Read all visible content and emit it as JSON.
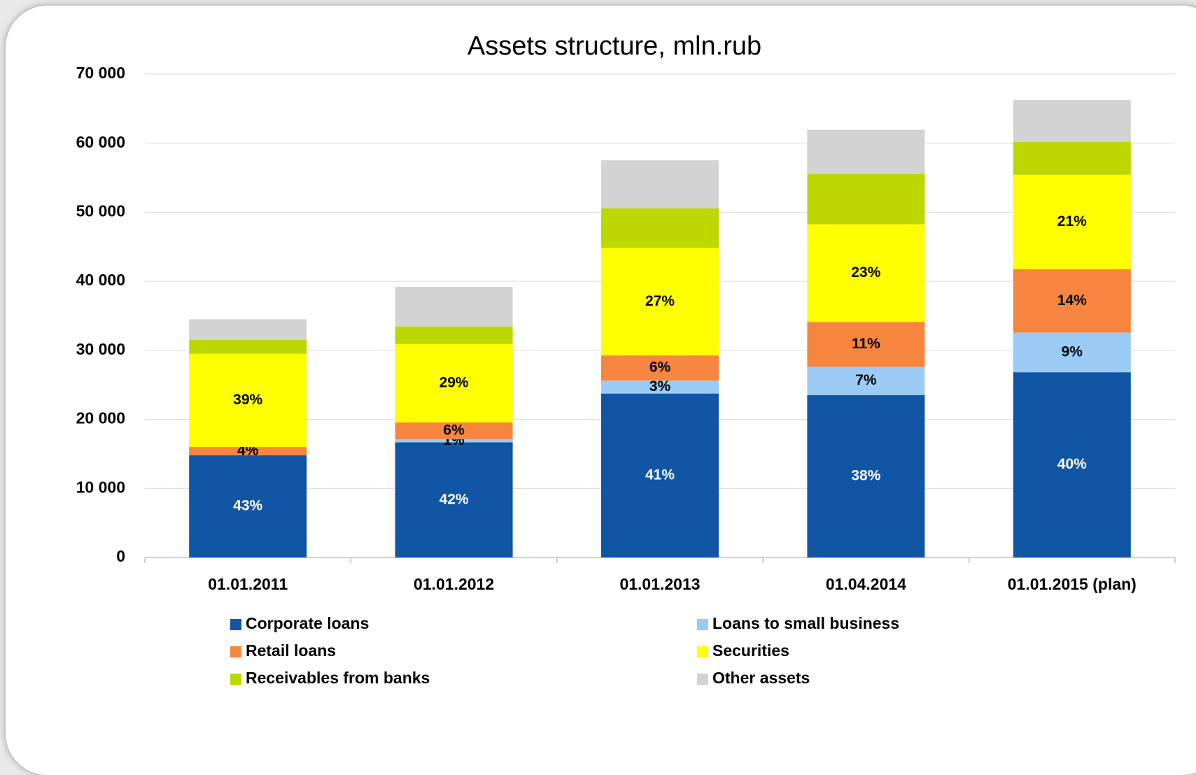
{
  "chart_data": {
    "type": "stacked_bar",
    "title": "Assets structure, mln.rub",
    "categories": [
      "01.01.2011",
      "01.01.2012",
      "01.01.2013",
      "01.04.2014",
      "01.01.2015 (plan)"
    ],
    "series": [
      {
        "name": "Corporate loans",
        "color": "#1155a5",
        "values": [
          14800,
          16670,
          23740,
          23520,
          26830
        ],
        "value_labels": [
          "43%",
          "42%",
          "41%",
          "38%",
          "40%"
        ]
      },
      {
        "name": "Loans to small business",
        "color": "#99cbf5",
        "values": [
          0,
          450,
          1880,
          4080,
          5740
        ],
        "value_labels": [
          null,
          "1%",
          "3%",
          "7%",
          "9%"
        ]
      },
      {
        "name": "Retail loans",
        "color": "#f5853f",
        "values": [
          1200,
          2430,
          3640,
          6520,
          9170
        ],
        "value_labels": [
          "4%",
          "6%",
          "6%",
          "11%",
          "14%"
        ]
      },
      {
        "name": "Securities",
        "color": "#ffff00",
        "values": [
          13500,
          11380,
          15570,
          14130,
          13690
        ],
        "value_labels": [
          "39%",
          "29%",
          "27%",
          "23%",
          "21%"
        ]
      },
      {
        "name": "Receivables from banks",
        "color": "#bcd800",
        "values": [
          2000,
          2530,
          5740,
          7290,
          4740
        ]
      },
      {
        "name": "Other assets",
        "color": "#d3d3d3",
        "values": [
          3000,
          5750,
          6950,
          6400,
          6080
        ]
      }
    ],
    "ylim": [
      0,
      70000
    ],
    "yticks": [
      0,
      {
        "value": 10000,
        "label": "10 000"
      },
      {
        "value": 20000,
        "label": "20 000"
      },
      {
        "value": 30000,
        "label": "30 000"
      },
      {
        "value": 40000,
        "label": "40 000"
      },
      {
        "value": 50000,
        "label": "50 000"
      },
      {
        "value": 60000,
        "label": "60 000"
      },
      {
        "value": 70000,
        "label": "70 000"
      }
    ],
    "grid": true
  }
}
